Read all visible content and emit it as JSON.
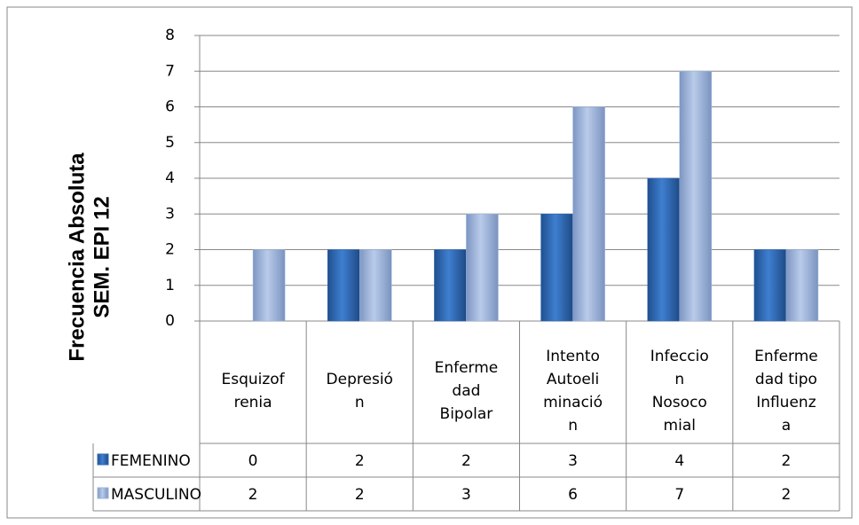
{
  "chart_data": {
    "type": "bar",
    "y_label": [
      "Frecuencia Absoluta",
      "SEM. EPI 12"
    ],
    "categories": [
      [
        "Esquizof",
        "renia"
      ],
      [
        "Depresió",
        "n"
      ],
      [
        "Enferme",
        "dad",
        "Bipolar"
      ],
      [
        "Intento",
        "Autoeli",
        "minació",
        "n"
      ],
      [
        "Infeccio",
        "n",
        "Nosoco",
        "mial"
      ],
      [
        "Enferme",
        "dad tipo",
        "Influenz",
        "a"
      ]
    ],
    "series": [
      {
        "name": "FEMENINO",
        "color": "#2f69b3",
        "values": [
          0,
          2,
          2,
          3,
          4,
          2
        ]
      },
      {
        "name": "MASCULINO",
        "color": "#9cb4da",
        "values": [
          2,
          2,
          3,
          6,
          7,
          2
        ]
      }
    ],
    "ylim": [
      0,
      8
    ],
    "yticks": [
      0,
      1,
      2,
      3,
      4,
      5,
      6,
      7,
      8
    ],
    "grid": true,
    "data_table": true
  }
}
